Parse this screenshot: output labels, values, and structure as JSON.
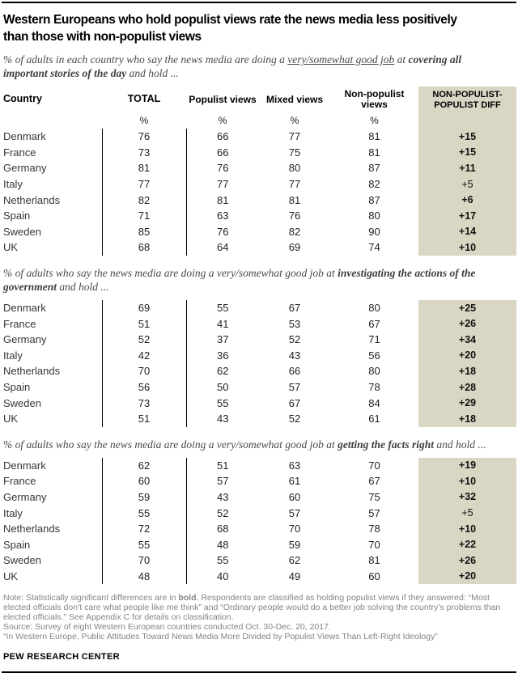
{
  "colors": {
    "diff_bg": "#DAD6C4",
    "rule": "#000000",
    "note_gray": "#848484"
  },
  "title": {
    "line1": "Western Europeans who hold populist views rate the news media less positively",
    "line2": "than those with non-populist views"
  },
  "header": {
    "country": "Country",
    "total": "TOTAL",
    "populist": "Populist views",
    "mixed": "Mixed views",
    "nonpopulist": "Non-populist views",
    "diff": "NON-POPULIST-POPULIST DIFF",
    "percent": "%"
  },
  "chart_data": {
    "type": "table",
    "title": "Western Europeans who hold populist views rate the news media less positively than those with non-populist views",
    "columns": [
      "Country",
      "TOTAL",
      "Populist views",
      "Mixed views",
      "Non-populist views",
      "NON-POPULIST-POPULIST DIFF"
    ],
    "sections": [
      {
        "subtitle": {
          "pre": "% of adults in each country who say the news media are doing a ",
          "underlined": "very/somewhat good job",
          "mid": " at ",
          "bold": "covering all important stories of the day",
          "post": " and hold ..."
        },
        "rows": [
          [
            "Denmark",
            76,
            66,
            77,
            81,
            "+15"
          ],
          [
            "France",
            73,
            66,
            75,
            81,
            "+15"
          ],
          [
            "Germany",
            81,
            76,
            80,
            87,
            "+11"
          ],
          [
            "Italy",
            77,
            77,
            77,
            82,
            "+5"
          ],
          [
            "Netherlands",
            82,
            81,
            81,
            87,
            "+6"
          ],
          [
            "Spain",
            71,
            63,
            76,
            80,
            "+17"
          ],
          [
            "Sweden",
            85,
            76,
            82,
            90,
            "+14"
          ],
          [
            "UK",
            68,
            64,
            69,
            74,
            "+10"
          ]
        ],
        "diff_significant": [
          true,
          true,
          true,
          false,
          true,
          true,
          true,
          true
        ]
      },
      {
        "subtitle": {
          "pre": "% of adults who say the news media are doing a very/somewhat good job at ",
          "underlined": "",
          "mid": "",
          "bold": "investigating the actions of the government",
          "post": " and hold ..."
        },
        "rows": [
          [
            "Denmark",
            69,
            55,
            67,
            80,
            "+25"
          ],
          [
            "France",
            51,
            41,
            53,
            67,
            "+26"
          ],
          [
            "Germany",
            52,
            37,
            52,
            71,
            "+34"
          ],
          [
            "Italy",
            42,
            36,
            43,
            56,
            "+20"
          ],
          [
            "Netherlands",
            70,
            62,
            66,
            80,
            "+18"
          ],
          [
            "Spain",
            56,
            50,
            57,
            78,
            "+28"
          ],
          [
            "Sweden",
            73,
            55,
            67,
            84,
            "+29"
          ],
          [
            "UK",
            51,
            43,
            52,
            61,
            "+18"
          ]
        ],
        "diff_significant": [
          true,
          true,
          true,
          true,
          true,
          true,
          true,
          true
        ]
      },
      {
        "subtitle": {
          "pre": "% of adults who say the news media are doing a very/somewhat good job at ",
          "underlined": "",
          "mid": "",
          "bold": "getting the facts right",
          "post": " and hold ..."
        },
        "rows": [
          [
            "Denmark",
            62,
            51,
            63,
            70,
            "+19"
          ],
          [
            "France",
            60,
            57,
            61,
            67,
            "+10"
          ],
          [
            "Germany",
            59,
            43,
            60,
            75,
            "+32"
          ],
          [
            "Italy",
            55,
            52,
            57,
            57,
            "+5"
          ],
          [
            "Netherlands",
            72,
            68,
            70,
            78,
            "+10"
          ],
          [
            "Spain",
            55,
            48,
            59,
            70,
            "+22"
          ],
          [
            "Sweden",
            70,
            55,
            62,
            81,
            "+26"
          ],
          [
            "UK",
            48,
            40,
            49,
            60,
            "+20"
          ]
        ],
        "diff_significant": [
          true,
          true,
          true,
          false,
          true,
          true,
          true,
          true
        ]
      }
    ]
  },
  "notes": {
    "note_pre": "Note: Statistically significant differences are in ",
    "note_bold": "bold",
    "note_post": ". Respondents are classified as holding populist views if they answered: “Most elected officials don’t care what people like me think” and “Ordinary people would do a better job solving the country’s problems than elected officials.” See Appendix C for details on classification.",
    "source": "Source: Survey of eight Western European countries conducted Oct. 30-Dec. 20, 2017.",
    "report": "“In Western Europe, Public Attitudes Toward News Media More Divided by Populist Views Than Left-Right Ideology”"
  },
  "footer": {
    "brand": "PEW RESEARCH CENTER"
  }
}
